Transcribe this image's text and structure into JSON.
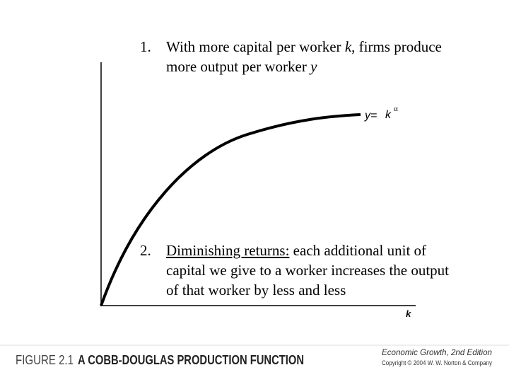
{
  "items": [
    {
      "number": "1.",
      "lines": [
        [
          {
            "text": "With more capital per worker "
          },
          {
            "text": "k",
            "style": "italic"
          },
          {
            "text": ", firms produce"
          }
        ],
        [
          {
            "text": "more output per worker "
          },
          {
            "text": "y",
            "style": "italic"
          }
        ]
      ]
    },
    {
      "number": "2.",
      "lines": [
        [
          {
            "text": "Diminishing returns:",
            "style": "underline"
          },
          {
            "text": " each additional unit of"
          }
        ],
        [
          {
            "text": "capital we give to a worker increases the output"
          }
        ],
        [
          {
            "text": "of that worker by less and less"
          }
        ]
      ]
    }
  ],
  "curve_label": {
    "y": "y=",
    "k": "k",
    "exponent": "α"
  },
  "axis_label": "k",
  "footer": {
    "figure": "FIGURE 2.1",
    "title": "A COBB-DOUGLAS PRODUCTION FUNCTION",
    "book": "Economic Growth, 2nd Edition",
    "copyright": "Copyright © 2004 W. W. Norton & Company"
  }
}
